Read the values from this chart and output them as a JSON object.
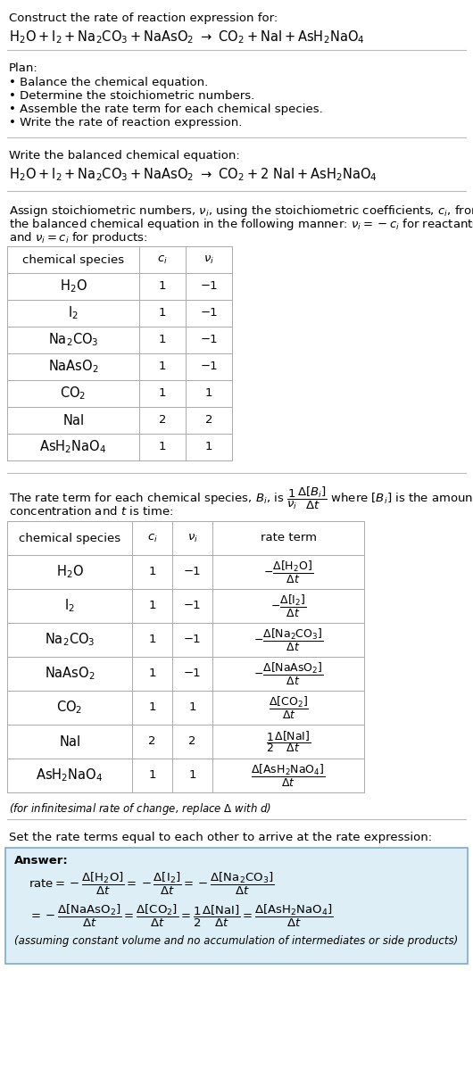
{
  "bg_color": "#ffffff",
  "text_color": "#000000",
  "table_border_color": "#aaaaaa",
  "answer_box_color": "#ddeef6",
  "answer_box_border": "#7aabcc",
  "fs": 9.5,
  "fs_eq": 10.5,
  "fs_small": 8.5,
  "plan_items": [
    "• Balance the chemical equation.",
    "• Determine the stoichiometric numbers.",
    "• Assemble the rate term for each chemical species.",
    "• Write the rate of reaction expression."
  ],
  "table1_rows": [
    [
      "H₂O",
      "1",
      "−1"
    ],
    [
      "I₂",
      "1",
      "−1"
    ],
    [
      "Na₂CO₃",
      "1",
      "−1"
    ],
    [
      "NaAsO₂",
      "1",
      "−1"
    ],
    [
      "CO₂",
      "1",
      "1"
    ],
    [
      "NaI",
      "2",
      "2"
    ],
    [
      "AsH₂NaO₄",
      "1",
      "1"
    ]
  ],
  "table2_rows": [
    [
      "H₂O",
      "1",
      "−1"
    ],
    [
      "I₂",
      "1",
      "−1"
    ],
    [
      "Na₂CO₃",
      "1",
      "−1"
    ],
    [
      "NaAsO₂",
      "1",
      "−1"
    ],
    [
      "CO₂",
      "1",
      "1"
    ],
    [
      "NaI",
      "2",
      "2"
    ],
    [
      "AsH₂NaO₄",
      "1",
      "1"
    ]
  ]
}
